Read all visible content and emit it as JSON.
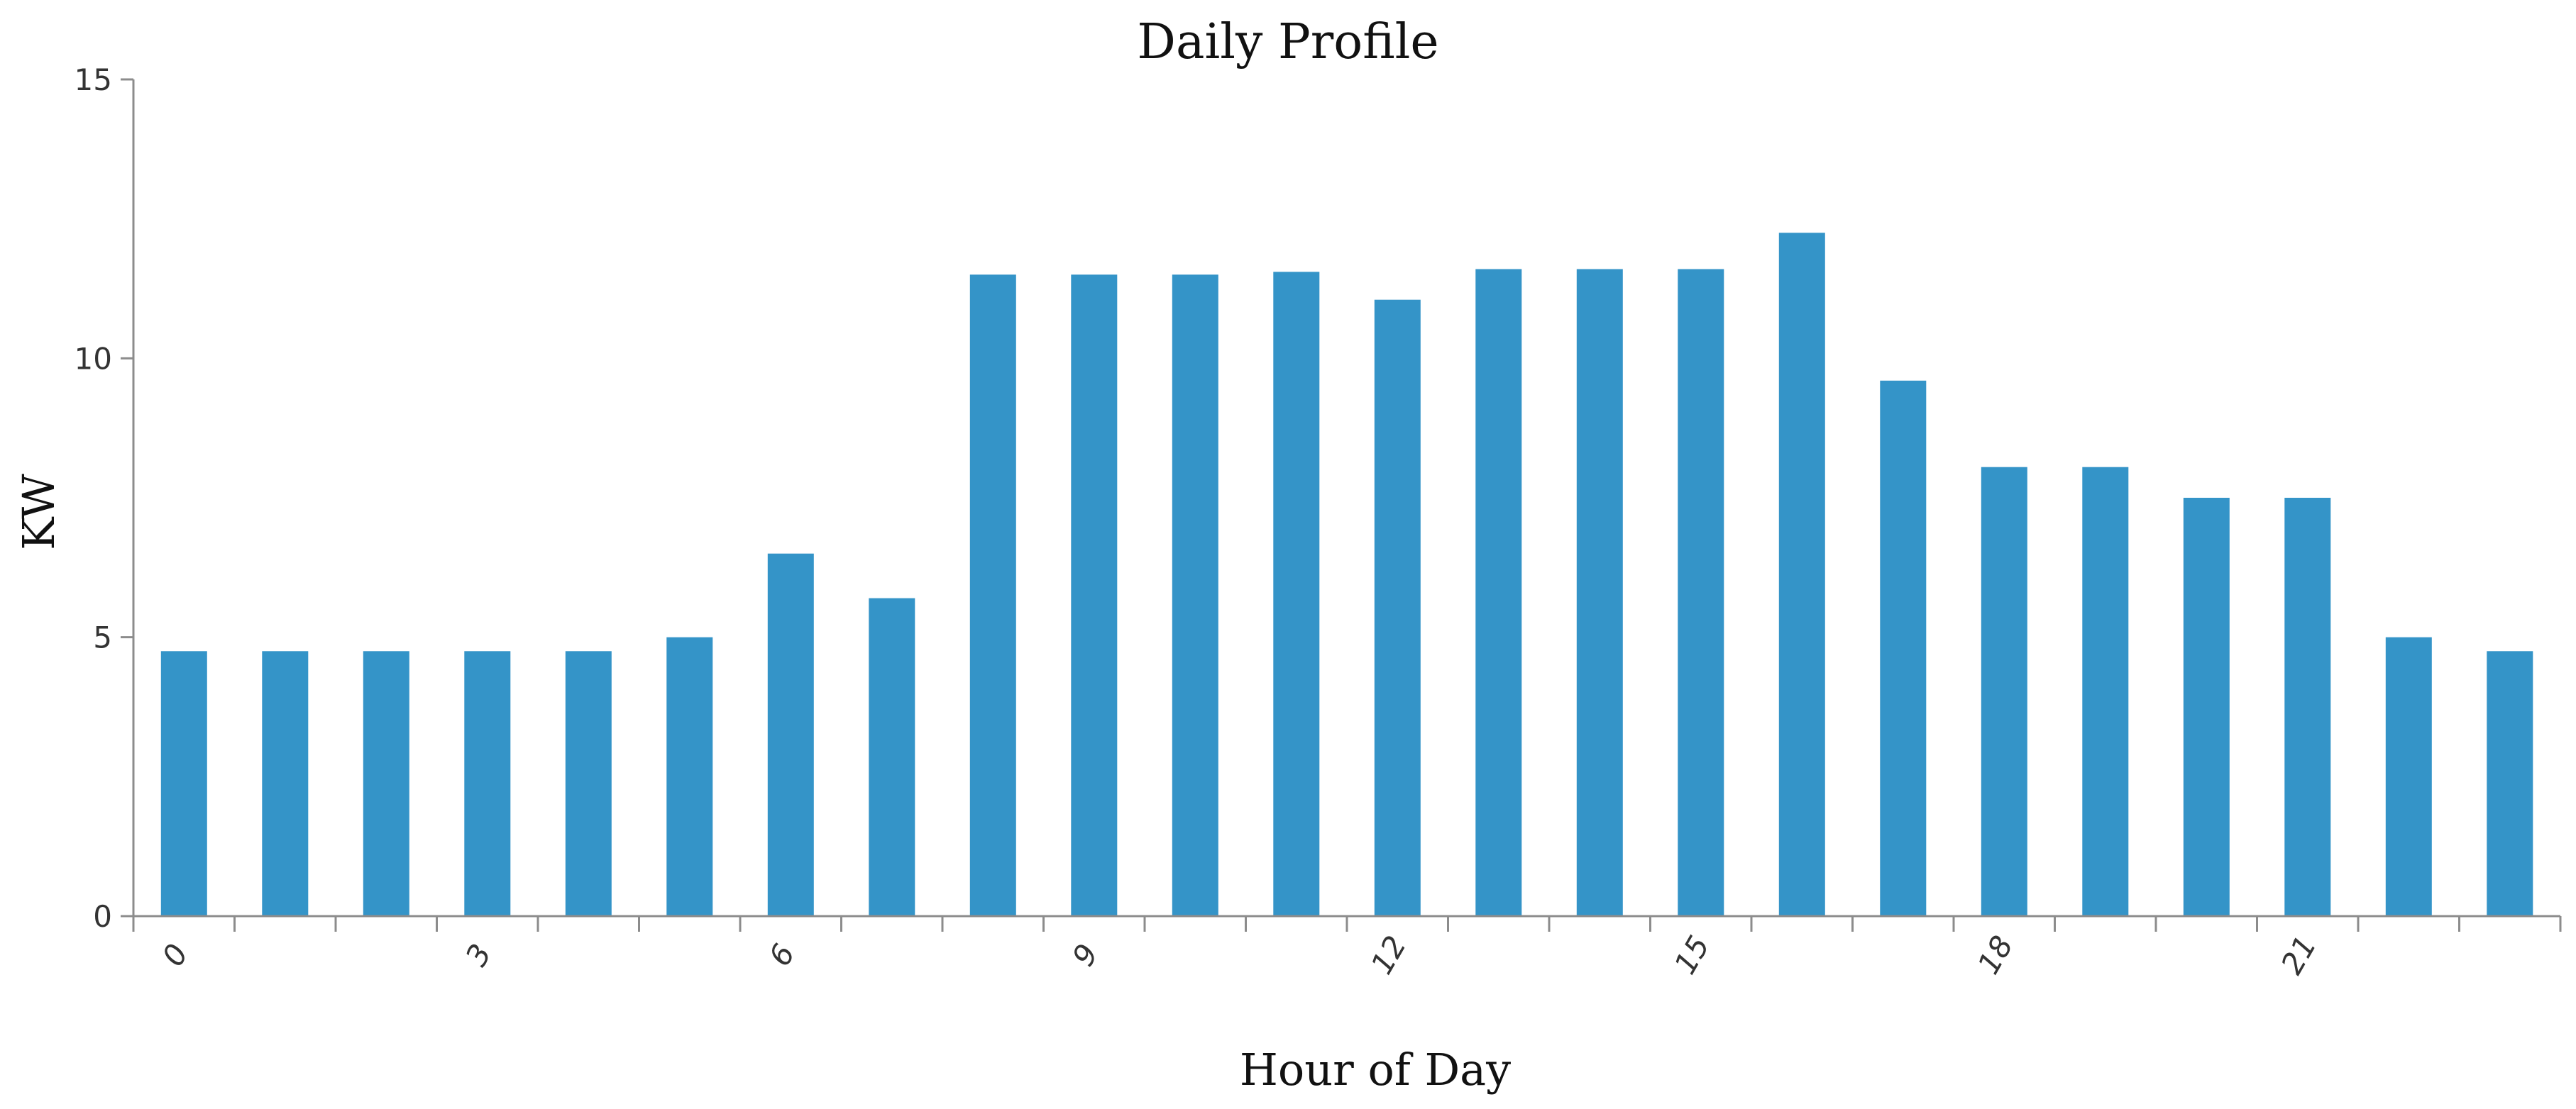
{
  "chart_data": {
    "type": "bar",
    "title": "Daily Profile",
    "xlabel": "Hour of Day",
    "ylabel": "KW",
    "categories": [
      "0",
      "1",
      "2",
      "3",
      "4",
      "5",
      "6",
      "7",
      "8",
      "9",
      "10",
      "11",
      "12",
      "13",
      "14",
      "15",
      "16",
      "17",
      "18",
      "19",
      "20",
      "21",
      "22",
      "23"
    ],
    "x_tick_labels": [
      "0",
      "",
      "",
      "3",
      "",
      "",
      "6",
      "",
      "",
      "9",
      "",
      "",
      "12",
      "",
      "",
      "15",
      "",
      "",
      "18",
      "",
      "",
      "21",
      "",
      ""
    ],
    "series": [
      {
        "values": [
          4.75,
          4.75,
          4.75,
          4.75,
          4.75,
          5.0,
          6.5,
          5.7,
          11.5,
          11.5,
          11.5,
          11.55,
          11.05,
          11.6,
          11.6,
          11.6,
          12.25,
          9.6,
          8.05,
          8.05,
          7.5,
          7.5,
          5.0,
          4.75
        ],
        "color": "#3494c8"
      }
    ],
    "ylim": [
      0,
      15
    ],
    "y_ticks": [
      0,
      5,
      10,
      15
    ],
    "grid": false,
    "legend": "none"
  }
}
